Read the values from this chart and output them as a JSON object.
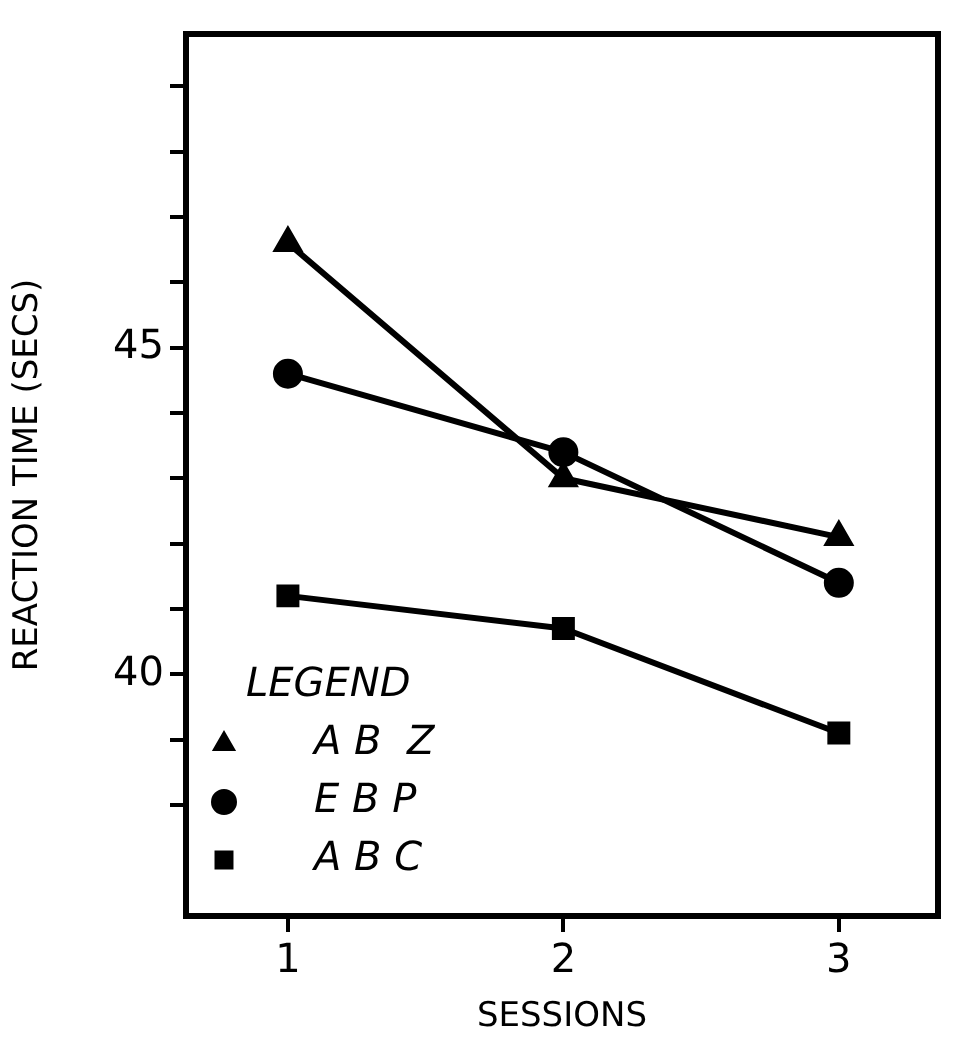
{
  "chart_data": {
    "type": "line",
    "xlabel": "SESSIONS",
    "ylabel": "REACTION TIME (SECS)",
    "legend_title": "LEGEND",
    "legend": "bottom left",
    "x": [
      1,
      2,
      3
    ],
    "xlim": [
      0.63,
      3.36
    ],
    "xticks": [
      1,
      2,
      3
    ],
    "ylim": [
      36.3,
      49.8
    ],
    "yticks": [
      {
        "value": 38,
        "label": null
      },
      {
        "value": 39,
        "label": null
      },
      40,
      {
        "value": 41,
        "label": null
      },
      {
        "value": 42,
        "label": null
      },
      {
        "value": 43,
        "label": null
      },
      {
        "value": 44,
        "label": null
      },
      45,
      {
        "value": 46,
        "label": null
      },
      {
        "value": 47,
        "label": null
      },
      {
        "value": 48,
        "label": null
      },
      {
        "value": 49,
        "label": null
      }
    ],
    "line_style": "solid",
    "series": [
      {
        "name": "A B  Z",
        "color": "#000000",
        "marker": "triangle",
        "values": [
          46.6,
          43.0,
          42.1
        ]
      },
      {
        "name": "E B P",
        "color": "#000000",
        "marker": "circle",
        "values": [
          44.6,
          43.4,
          41.4
        ]
      },
      {
        "name": "A B C",
        "color": "#000000",
        "marker": "square",
        "values": [
          41.2,
          40.7,
          39.1
        ]
      }
    ]
  }
}
